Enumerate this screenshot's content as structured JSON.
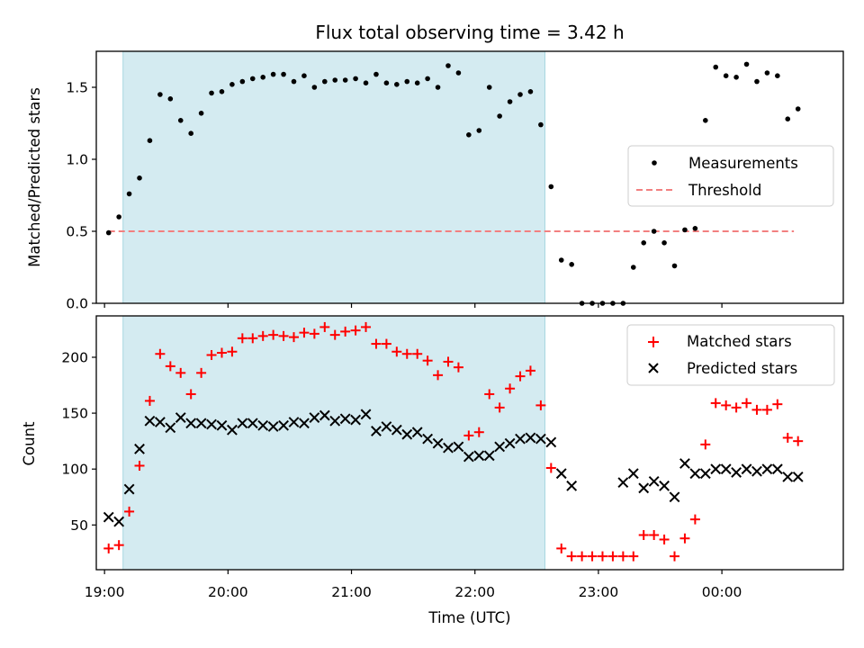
{
  "chart_data": [
    {
      "type": "scatter",
      "title": "Flux total observing time = 3.42 h",
      "ylabel": "Matched/Predicted stars",
      "xlabel": "",
      "ylim": [
        0,
        1.75
      ],
      "yticks": [
        0,
        0.5,
        1.0,
        1.5
      ],
      "ytick_labels": [
        "0.0",
        "0.5",
        "1.0",
        "1.5"
      ],
      "xlim": [
        "18:56",
        "00:59"
      ],
      "highlight_span": [
        "19:09",
        "22:34"
      ],
      "highlight_color": "#d4ebf1",
      "legend_position": "center-right",
      "threshold": {
        "name": "Threshold",
        "y": 0.5,
        "x_from": "19:02",
        "x_to": "00:35",
        "color": "#f28080"
      },
      "series": [
        {
          "name": "Measurements",
          "marker": "dot",
          "color": "#000000",
          "x": [
            "19:02",
            "19:07",
            "19:12",
            "19:17",
            "19:22",
            "19:27",
            "19:32",
            "19:37",
            "19:42",
            "19:47",
            "19:52",
            "19:57",
            "20:02",
            "20:07",
            "20:12",
            "20:17",
            "20:22",
            "20:27",
            "20:32",
            "20:37",
            "20:42",
            "20:47",
            "20:52",
            "20:57",
            "21:02",
            "21:07",
            "21:12",
            "21:17",
            "21:22",
            "21:27",
            "21:32",
            "21:37",
            "21:42",
            "21:47",
            "21:52",
            "21:57",
            "22:02",
            "22:07",
            "22:12",
            "22:17",
            "22:22",
            "22:27",
            "22:32",
            "22:37",
            "22:42",
            "22:47",
            "22:52",
            "22:57",
            "23:02",
            "23:07",
            "23:12",
            "23:17",
            "23:22",
            "23:27",
            "23:32",
            "23:37",
            "23:42",
            "23:47",
            "23:52",
            "23:57",
            "00:02",
            "00:07",
            "00:12",
            "00:17",
            "00:22",
            "00:27",
            "00:32",
            "00:37"
          ],
          "y": [
            0.49,
            0.6,
            0.76,
            0.87,
            1.13,
            1.45,
            1.42,
            1.27,
            1.18,
            1.32,
            1.46,
            1.47,
            1.52,
            1.54,
            1.56,
            1.57,
            1.59,
            1.59,
            1.54,
            1.58,
            1.5,
            1.54,
            1.55,
            1.55,
            1.56,
            1.53,
            1.59,
            1.53,
            1.52,
            1.54,
            1.53,
            1.56,
            1.5,
            1.65,
            1.6,
            1.17,
            1.2,
            1.5,
            1.3,
            1.4,
            1.45,
            1.47,
            1.24,
            0.81,
            0.3,
            0.27,
            0,
            0,
            0,
            0,
            0,
            0.25,
            0.42,
            0.5,
            0.42,
            0.26,
            0.51,
            0.52,
            1.27,
            1.64,
            1.58,
            1.57,
            1.66,
            1.54,
            1.6,
            1.58,
            1.28,
            1.35
          ]
        }
      ]
    },
    {
      "type": "scatter",
      "title": "",
      "xlabel": "Time (UTC)",
      "ylabel": "Count",
      "ylim": [
        10,
        237
      ],
      "yticks": [
        50,
        100,
        150,
        200
      ],
      "ytick_labels": [
        "50",
        "100",
        "150",
        "200"
      ],
      "xlim": [
        "18:56",
        "00:59"
      ],
      "xticks": [
        "19:00",
        "20:00",
        "21:00",
        "22:00",
        "23:00",
        "00:00"
      ],
      "highlight_span": [
        "19:09",
        "22:34"
      ],
      "highlight_color": "#d4ebf1",
      "legend_position": "top-right",
      "series": [
        {
          "name": "Matched stars",
          "marker": "plus",
          "color": "#ff0000",
          "x": [
            "19:02",
            "19:07",
            "19:12",
            "19:17",
            "19:22",
            "19:27",
            "19:32",
            "19:37",
            "19:42",
            "19:47",
            "19:52",
            "19:57",
            "20:02",
            "20:07",
            "20:12",
            "20:17",
            "20:22",
            "20:27",
            "20:32",
            "20:37",
            "20:42",
            "20:47",
            "20:52",
            "20:57",
            "21:02",
            "21:07",
            "21:12",
            "21:17",
            "21:22",
            "21:27",
            "21:32",
            "21:37",
            "21:42",
            "21:47",
            "21:52",
            "21:57",
            "22:02",
            "22:07",
            "22:12",
            "22:17",
            "22:22",
            "22:27",
            "22:32",
            "22:37",
            "22:42",
            "22:47",
            "22:52",
            "22:57",
            "23:02",
            "23:07",
            "23:12",
            "23:17",
            "23:22",
            "23:27",
            "23:32",
            "23:37",
            "23:42",
            "23:47",
            "23:52",
            "23:57",
            "00:02",
            "00:07",
            "00:12",
            "00:17",
            "00:22",
            "00:27",
            "00:32",
            "00:37"
          ],
          "y": [
            29,
            32,
            62,
            103,
            161,
            203,
            192,
            186,
            167,
            186,
            202,
            204,
            205,
            217,
            217,
            219,
            220,
            219,
            218,
            222,
            221,
            227,
            220,
            223,
            224,
            227,
            212,
            212,
            205,
            203,
            203,
            197,
            184,
            196,
            191,
            130,
            133,
            167,
            155,
            172,
            183,
            188,
            157,
            101,
            29,
            22,
            22,
            22,
            22,
            22,
            22,
            22,
            41,
            41,
            37,
            22,
            38,
            55,
            122,
            159,
            157,
            155,
            159,
            153,
            153,
            158,
            128,
            125
          ]
        },
        {
          "name": "Predicted stars",
          "marker": "x",
          "color": "#000000",
          "x": [
            "19:02",
            "19:07",
            "19:12",
            "19:17",
            "19:22",
            "19:27",
            "19:32",
            "19:37",
            "19:42",
            "19:47",
            "19:52",
            "19:57",
            "20:02",
            "20:07",
            "20:12",
            "20:17",
            "20:22",
            "20:27",
            "20:32",
            "20:37",
            "20:42",
            "20:47",
            "20:52",
            "20:57",
            "21:02",
            "21:07",
            "21:12",
            "21:17",
            "21:22",
            "21:27",
            "21:32",
            "21:37",
            "21:42",
            "21:47",
            "21:52",
            "21:57",
            "22:02",
            "22:07",
            "22:12",
            "22:17",
            "22:22",
            "22:27",
            "22:32",
            "22:37",
            "22:42",
            "22:47",
            "23:12",
            "23:17",
            "23:22",
            "23:27",
            "23:32",
            "23:37",
            "23:42",
            "23:47",
            "23:52",
            "23:57",
            "00:02",
            "00:07",
            "00:12",
            "00:17",
            "00:22",
            "00:27",
            "00:32",
            "00:37"
          ],
          "y": [
            57,
            53,
            82,
            118,
            143,
            142,
            137,
            146,
            141,
            141,
            140,
            139,
            135,
            141,
            141,
            139,
            138,
            139,
            142,
            141,
            146,
            148,
            143,
            145,
            144,
            149,
            134,
            138,
            135,
            131,
            133,
            127,
            123,
            119,
            120,
            111,
            112,
            112,
            120,
            123,
            127,
            128,
            127,
            124,
            96,
            85,
            88,
            96,
            83,
            89,
            85,
            75,
            105,
            96,
            96,
            100,
            100,
            97,
            100,
            98,
            100,
            100,
            93,
            93
          ]
        }
      ]
    }
  ]
}
